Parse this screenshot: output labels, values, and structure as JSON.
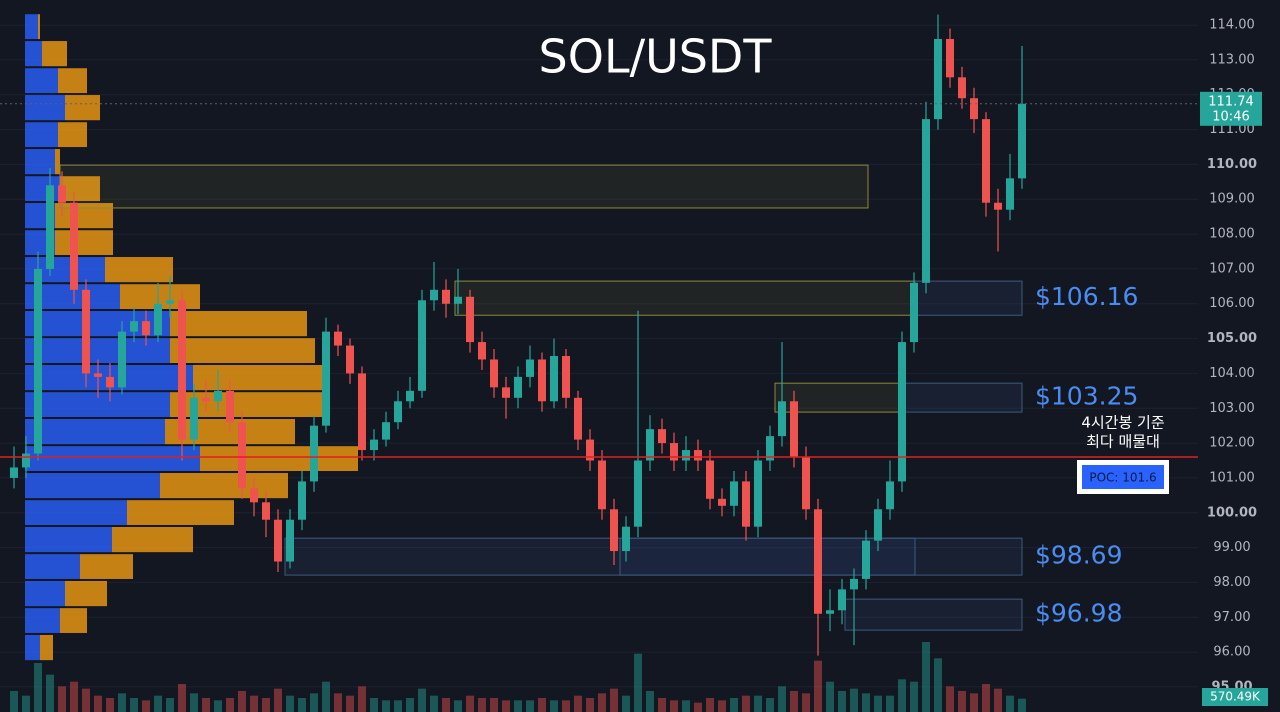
{
  "chart_data": {
    "type": "candlestick",
    "title": "SOL/USDT",
    "up_color": "#26a69a",
    "down_color": "#ef5350",
    "ylim": [
      94.28,
      114.72
    ],
    "yticks": [
      {
        "value": 95,
        "label": "95.00"
      },
      {
        "value": 96,
        "label": "96.00"
      },
      {
        "value": 97,
        "label": "97.00"
      },
      {
        "value": 98,
        "label": "98.00"
      },
      {
        "value": 99,
        "label": "99.00"
      },
      {
        "value": 100,
        "label": "100.00"
      },
      {
        "value": 101,
        "label": "101.00"
      },
      {
        "value": 102,
        "label": "102.00"
      },
      {
        "value": 103,
        "label": "103.00"
      },
      {
        "value": 104,
        "label": "104.00"
      },
      {
        "value": 105,
        "label": "105.00"
      },
      {
        "value": 106,
        "label": "106.00"
      },
      {
        "value": 107,
        "label": "107.00"
      },
      {
        "value": 108,
        "label": "108.00"
      },
      {
        "value": 109,
        "label": "109.00"
      },
      {
        "value": 110,
        "label": "110.00"
      },
      {
        "value": 111,
        "label": "111.00"
      },
      {
        "value": 112,
        "label": "112.00"
      },
      {
        "value": 113,
        "label": "113.00"
      },
      {
        "value": 114,
        "label": "114.00"
      }
    ],
    "ohlc": [
      [
        101.0,
        101.9,
        100.7,
        101.3
      ],
      [
        101.3,
        102.2,
        101.0,
        101.7
      ],
      [
        101.7,
        107.5,
        101.5,
        107.0
      ],
      [
        107.0,
        109.9,
        106.8,
        109.4
      ],
      [
        109.4,
        109.8,
        108.5,
        108.9
      ],
      [
        108.9,
        109.2,
        106.0,
        106.4
      ],
      [
        106.4,
        106.7,
        103.6,
        104.0
      ],
      [
        104.0,
        104.4,
        103.3,
        103.9
      ],
      [
        103.9,
        104.3,
        103.2,
        103.6
      ],
      [
        103.6,
        105.5,
        103.4,
        105.2
      ],
      [
        105.2,
        105.9,
        104.9,
        105.5
      ],
      [
        105.5,
        105.8,
        104.8,
        105.1
      ],
      [
        105.1,
        106.6,
        104.9,
        106.0
      ],
      [
        106.0,
        106.8,
        105.6,
        106.1
      ],
      [
        106.1,
        106.4,
        101.5,
        102.1
      ],
      [
        102.1,
        103.7,
        101.8,
        103.3
      ],
      [
        103.3,
        103.8,
        102.9,
        103.2
      ],
      [
        103.2,
        104.1,
        102.9,
        103.5
      ],
      [
        103.5,
        103.8,
        102.3,
        102.6
      ],
      [
        102.6,
        102.9,
        100.4,
        100.7
      ],
      [
        100.7,
        101.0,
        99.9,
        100.3
      ],
      [
        100.3,
        100.6,
        99.3,
        99.8
      ],
      [
        99.8,
        100.1,
        98.3,
        98.6
      ],
      [
        98.6,
        100.1,
        98.4,
        99.8
      ],
      [
        99.8,
        101.2,
        99.5,
        100.9
      ],
      [
        100.9,
        102.8,
        100.6,
        102.5
      ],
      [
        102.5,
        105.6,
        102.3,
        105.2
      ],
      [
        105.2,
        105.4,
        104.5,
        104.8
      ],
      [
        104.8,
        105.0,
        103.7,
        104.0
      ],
      [
        104.0,
        104.2,
        101.5,
        101.8
      ],
      [
        101.8,
        102.4,
        101.5,
        102.1
      ],
      [
        102.1,
        102.9,
        101.9,
        102.6
      ],
      [
        102.6,
        103.5,
        102.4,
        103.2
      ],
      [
        103.2,
        103.9,
        103.0,
        103.5
      ],
      [
        103.5,
        106.4,
        103.3,
        106.1
      ],
      [
        106.1,
        107.2,
        105.8,
        106.4
      ],
      [
        106.4,
        106.7,
        105.6,
        106.0
      ],
      [
        106.0,
        107.0,
        105.7,
        106.2
      ],
      [
        106.2,
        106.4,
        104.6,
        104.9
      ],
      [
        104.9,
        105.2,
        104.1,
        104.4
      ],
      [
        104.4,
        104.7,
        103.3,
        103.6
      ],
      [
        103.6,
        103.9,
        102.7,
        103.3
      ],
      [
        103.3,
        104.2,
        103.0,
        103.9
      ],
      [
        103.9,
        104.8,
        103.6,
        104.4
      ],
      [
        104.4,
        104.6,
        102.9,
        103.2
      ],
      [
        103.2,
        105.0,
        103.0,
        104.5
      ],
      [
        104.5,
        104.7,
        103.0,
        103.3
      ],
      [
        103.3,
        103.5,
        101.8,
        102.1
      ],
      [
        102.1,
        102.4,
        101.2,
        101.5
      ],
      [
        101.5,
        101.8,
        99.8,
        100.1
      ],
      [
        100.1,
        100.4,
        98.5,
        98.9
      ],
      [
        98.9,
        99.9,
        98.6,
        99.6
      ],
      [
        99.6,
        105.8,
        99.3,
        101.5
      ],
      [
        101.5,
        102.8,
        101.2,
        102.4
      ],
      [
        102.4,
        102.7,
        101.7,
        102.0
      ],
      [
        102.0,
        102.3,
        101.2,
        101.5
      ],
      [
        101.5,
        102.2,
        101.2,
        101.8
      ],
      [
        101.8,
        102.1,
        101.2,
        101.5
      ],
      [
        101.5,
        101.8,
        100.1,
        100.4
      ],
      [
        100.4,
        100.7,
        99.9,
        100.2
      ],
      [
        100.2,
        101.2,
        99.9,
        100.9
      ],
      [
        100.9,
        101.2,
        99.2,
        99.6
      ],
      [
        99.6,
        101.8,
        99.3,
        101.5
      ],
      [
        101.5,
        102.5,
        101.2,
        102.2
      ],
      [
        102.2,
        104.9,
        101.9,
        103.2
      ],
      [
        103.2,
        103.5,
        101.3,
        101.6
      ],
      [
        101.6,
        101.9,
        99.8,
        100.1
      ],
      [
        100.1,
        100.4,
        95.9,
        97.1
      ],
      [
        97.1,
        97.8,
        96.6,
        97.2
      ],
      [
        97.2,
        98.1,
        96.8,
        97.8
      ],
      [
        97.8,
        98.4,
        96.2,
        98.1
      ],
      [
        98.1,
        99.5,
        97.8,
        99.2
      ],
      [
        99.2,
        100.4,
        98.9,
        100.1
      ],
      [
        100.1,
        101.5,
        99.8,
        100.9
      ],
      [
        100.9,
        105.2,
        100.6,
        104.9
      ],
      [
        104.9,
        106.9,
        104.6,
        106.6
      ],
      [
        106.6,
        111.8,
        106.3,
        111.3
      ],
      [
        111.3,
        114.3,
        111.0,
        113.6
      ],
      [
        113.6,
        113.9,
        112.2,
        112.5
      ],
      [
        112.5,
        112.8,
        111.6,
        111.9
      ],
      [
        111.9,
        112.2,
        110.9,
        111.3
      ],
      [
        111.3,
        111.5,
        108.5,
        108.9
      ],
      [
        108.9,
        109.3,
        107.5,
        108.7
      ],
      [
        108.7,
        110.3,
        108.4,
        109.6
      ],
      [
        109.6,
        113.4,
        109.3,
        111.74
      ]
    ],
    "volume": [
      900,
      700,
      2100,
      1600,
      1100,
      1300,
      1000,
      700,
      600,
      800,
      600,
      500,
      700,
      600,
      1200,
      800,
      600,
      500,
      600,
      900,
      700,
      600,
      1000,
      700,
      600,
      800,
      1300,
      800,
      700,
      1100,
      600,
      500,
      500,
      600,
      1000,
      700,
      600,
      500,
      700,
      600,
      600,
      500,
      500,
      500,
      600,
      500,
      500,
      700,
      600,
      800,
      1000,
      700,
      2500,
      900,
      600,
      500,
      500,
      400,
      600,
      500,
      600,
      700,
      700,
      600,
      1100,
      900,
      800,
      2200,
      1300,
      900,
      1000,
      800,
      700,
      700,
      1400,
      1300,
      3000,
      2300,
      1100,
      900,
      800,
      1200,
      1000,
      700,
      570.49
    ],
    "last_volume_label": "570.49K",
    "last_price": {
      "value": 111.74,
      "label": "111.74"
    },
    "countdown": "10:46",
    "poc": {
      "value": 101.6,
      "label": "POC: 101.6",
      "color": "#e02020"
    },
    "poc_note": [
      "4시간봉 기준",
      "최다 매물대"
    ],
    "zones": [
      {
        "label": "$106.16",
        "high": 106.65,
        "low": 105.67
      },
      {
        "label": "$103.25",
        "high": 103.72,
        "low": 102.89
      },
      {
        "label": "$98.69",
        "high": 99.27,
        "low": 98.21
      },
      {
        "label": "$96.98",
        "high": 97.52,
        "low": 96.63
      }
    ],
    "supply_zones": [
      {
        "high": 109.98,
        "low": 108.75
      },
      {
        "high": 106.65,
        "low": 105.67
      },
      {
        "high": 103.72,
        "low": 102.89
      }
    ],
    "volume_profile": {
      "buy_color": "#2962ff",
      "sell_color": "#f39c12",
      "bins": [
        114.34,
        113.57,
        112.79,
        112.02,
        111.24,
        110.47,
        109.69,
        108.92,
        108.14,
        107.37,
        106.59,
        105.82,
        105.04,
        104.27,
        103.49,
        102.72,
        101.94,
        101.17,
        100.39,
        99.62,
        98.84,
        98.07,
        97.29,
        96.52,
        95.74
      ],
      "buy": [
        13,
        17,
        33,
        40,
        33,
        30,
        35,
        30,
        30,
        80,
        95,
        145,
        145,
        168,
        145,
        140,
        175,
        135,
        102,
        87,
        55,
        40,
        35,
        15
      ],
      "sell": [
        2,
        25,
        29,
        35,
        29,
        5,
        40,
        58,
        58,
        68,
        80,
        137,
        145,
        132,
        155,
        130,
        158,
        128,
        107,
        81,
        53,
        42,
        27,
        13
      ]
    }
  }
}
